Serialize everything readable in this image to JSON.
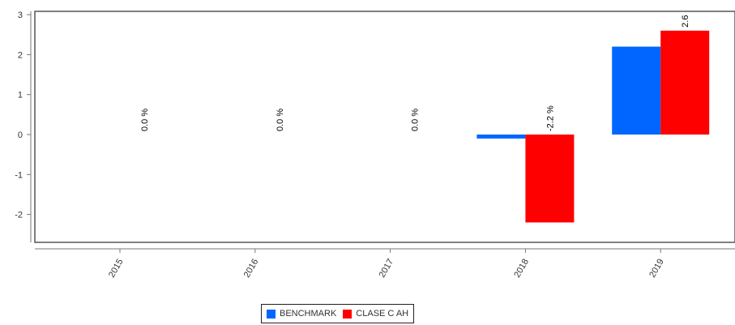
{
  "chart_data": {
    "type": "bar",
    "categories": [
      "2015",
      "2016",
      "2017",
      "2018",
      "2019"
    ],
    "series": [
      {
        "name": "BENCHMARK",
        "color": "#0066ff",
        "values": [
          0.0,
          0.0,
          0.0,
          -0.1,
          2.2
        ],
        "data_labels": [
          "",
          "",
          "",
          "",
          ""
        ]
      },
      {
        "name": "CLASE C AH",
        "color": "#ff0000",
        "values": [
          0.0,
          0.0,
          0.0,
          -2.2,
          2.6
        ],
        "data_labels": [
          "0.0 %",
          "0.0 %",
          "0.0 %",
          "-2.2 %",
          "2.6"
        ]
      }
    ],
    "y_ticks": [
      "3",
      "2",
      "1",
      "0",
      "-1",
      "-2"
    ],
    "ylim": [
      -2.7,
      3.0
    ],
    "grid": false,
    "legend_position": "bottom-center"
  }
}
